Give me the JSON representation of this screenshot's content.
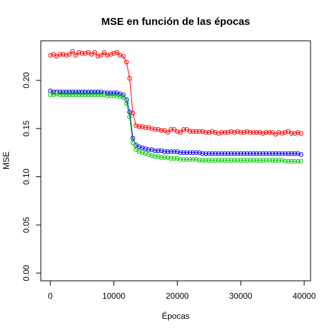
{
  "chart_data": {
    "type": "line",
    "title": "MSE en función de las épocas",
    "xlabel": "Épocas",
    "ylabel": "MSE",
    "xlim": [
      -1500,
      41000
    ],
    "ylim": [
      -0.008,
      0.241
    ],
    "xticks": [
      0,
      10000,
      20000,
      30000,
      40000
    ],
    "yticks": [
      0.0,
      0.05,
      0.1,
      0.15,
      0.2
    ],
    "xtick_labels": [
      "0",
      "10000",
      "20000",
      "30000",
      "40000"
    ],
    "ytick_labels": [
      "0.00",
      "0.05",
      "0.10",
      "0.15",
      "0.20"
    ],
    "grid": false,
    "legend": "none",
    "marker": "open-circle",
    "x": [
      0,
      500,
      1000,
      1500,
      2000,
      2500,
      3000,
      3500,
      4000,
      4500,
      5000,
      5500,
      6000,
      6500,
      7000,
      7500,
      8000,
      8500,
      9000,
      9500,
      10000,
      10500,
      11000,
      11500,
      12000,
      12500,
      13000,
      13500,
      14000,
      14500,
      15000,
      15500,
      16000,
      16500,
      17000,
      17500,
      18000,
      18500,
      19000,
      19500,
      20000,
      20500,
      21000,
      21500,
      22000,
      22500,
      23000,
      23500,
      24000,
      24500,
      25000,
      25500,
      26000,
      26500,
      27000,
      27500,
      28000,
      28500,
      29000,
      29500,
      30000,
      30500,
      31000,
      31500,
      32000,
      32500,
      33000,
      33500,
      34000,
      34500,
      35000,
      35500,
      36000,
      36500,
      37000,
      37500,
      38000,
      38500,
      39000,
      39500
    ],
    "series": [
      {
        "color": "#ff0000",
        "values": [
          0.226,
          0.227,
          0.225,
          0.227,
          0.227,
          0.226,
          0.227,
          0.23,
          0.226,
          0.229,
          0.228,
          0.228,
          0.229,
          0.227,
          0.229,
          0.225,
          0.226,
          0.229,
          0.226,
          0.227,
          0.228,
          0.229,
          0.226,
          0.225,
          0.219,
          0.202,
          0.166,
          0.153,
          0.152,
          0.152,
          0.151,
          0.151,
          0.15,
          0.149,
          0.149,
          0.148,
          0.148,
          0.146,
          0.149,
          0.149,
          0.147,
          0.146,
          0.149,
          0.149,
          0.147,
          0.147,
          0.147,
          0.147,
          0.147,
          0.146,
          0.146,
          0.147,
          0.146,
          0.145,
          0.146,
          0.146,
          0.146,
          0.147,
          0.146,
          0.147,
          0.146,
          0.146,
          0.147,
          0.146,
          0.146,
          0.146,
          0.146,
          0.145,
          0.146,
          0.146,
          0.146,
          0.144,
          0.146,
          0.145,
          0.146,
          0.147,
          0.145,
          0.145,
          0.146,
          0.145
        ]
      },
      {
        "color": "#0000ff",
        "values": [
          0.189,
          0.188,
          0.188,
          0.188,
          0.188,
          0.188,
          0.188,
          0.188,
          0.188,
          0.188,
          0.188,
          0.188,
          0.188,
          0.188,
          0.188,
          0.188,
          0.188,
          0.187,
          0.187,
          0.187,
          0.187,
          0.187,
          0.186,
          0.185,
          0.18,
          0.167,
          0.14,
          0.133,
          0.131,
          0.13,
          0.129,
          0.128,
          0.128,
          0.127,
          0.127,
          0.127,
          0.126,
          0.126,
          0.126,
          0.126,
          0.126,
          0.125,
          0.125,
          0.125,
          0.125,
          0.125,
          0.125,
          0.125,
          0.124,
          0.124,
          0.124,
          0.124,
          0.124,
          0.124,
          0.124,
          0.124,
          0.124,
          0.124,
          0.124,
          0.124,
          0.124,
          0.124,
          0.124,
          0.124,
          0.124,
          0.124,
          0.124,
          0.124,
          0.124,
          0.124,
          0.124,
          0.124,
          0.124,
          0.124,
          0.124,
          0.124,
          0.124,
          0.124,
          0.124,
          0.123
        ]
      },
      {
        "color": "#00cc00",
        "values": [
          0.185,
          0.185,
          0.186,
          0.185,
          0.185,
          0.185,
          0.185,
          0.185,
          0.185,
          0.185,
          0.185,
          0.185,
          0.185,
          0.185,
          0.185,
          0.185,
          0.185,
          0.185,
          0.184,
          0.184,
          0.184,
          0.184,
          0.183,
          0.182,
          0.176,
          0.162,
          0.135,
          0.128,
          0.126,
          0.125,
          0.124,
          0.123,
          0.122,
          0.121,
          0.121,
          0.12,
          0.12,
          0.12,
          0.119,
          0.119,
          0.119,
          0.118,
          0.118,
          0.118,
          0.118,
          0.118,
          0.118,
          0.117,
          0.117,
          0.117,
          0.117,
          0.117,
          0.117,
          0.117,
          0.117,
          0.117,
          0.117,
          0.117,
          0.117,
          0.117,
          0.117,
          0.117,
          0.117,
          0.117,
          0.117,
          0.117,
          0.117,
          0.117,
          0.117,
          0.117,
          0.117,
          0.117,
          0.117,
          0.117,
          0.116,
          0.116,
          0.116,
          0.116,
          0.116,
          0.116
        ]
      }
    ]
  }
}
